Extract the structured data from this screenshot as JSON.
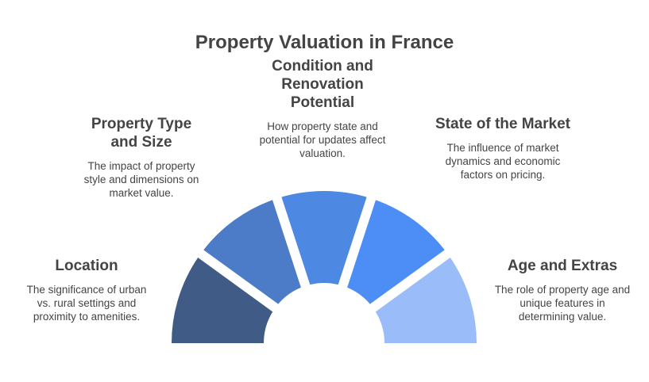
{
  "title": "Property Valuation in France",
  "segments": [
    {
      "id": "location",
      "heading": "Location",
      "description": "The significance of urban vs. rural settings and proximity to amenities.",
      "color": "#3f5b86"
    },
    {
      "id": "property-type",
      "heading": "Property Type and Size",
      "description": "The impact of property style and dimensions on market value.",
      "color": "#4c7bc7"
    },
    {
      "id": "condition",
      "heading": "Condition and Renovation Potential",
      "description": "How property state and potential for updates affect valuation.",
      "color": "#4d88e3"
    },
    {
      "id": "market",
      "heading": "State of the Market",
      "description": "The influence of market dynamics and economic factors on pricing.",
      "color": "#4c8ef6"
    },
    {
      "id": "age-extras",
      "heading": "Age and Extras",
      "description": "The role of property age and unique features in determining value.",
      "color": "#9abdfa"
    }
  ]
}
